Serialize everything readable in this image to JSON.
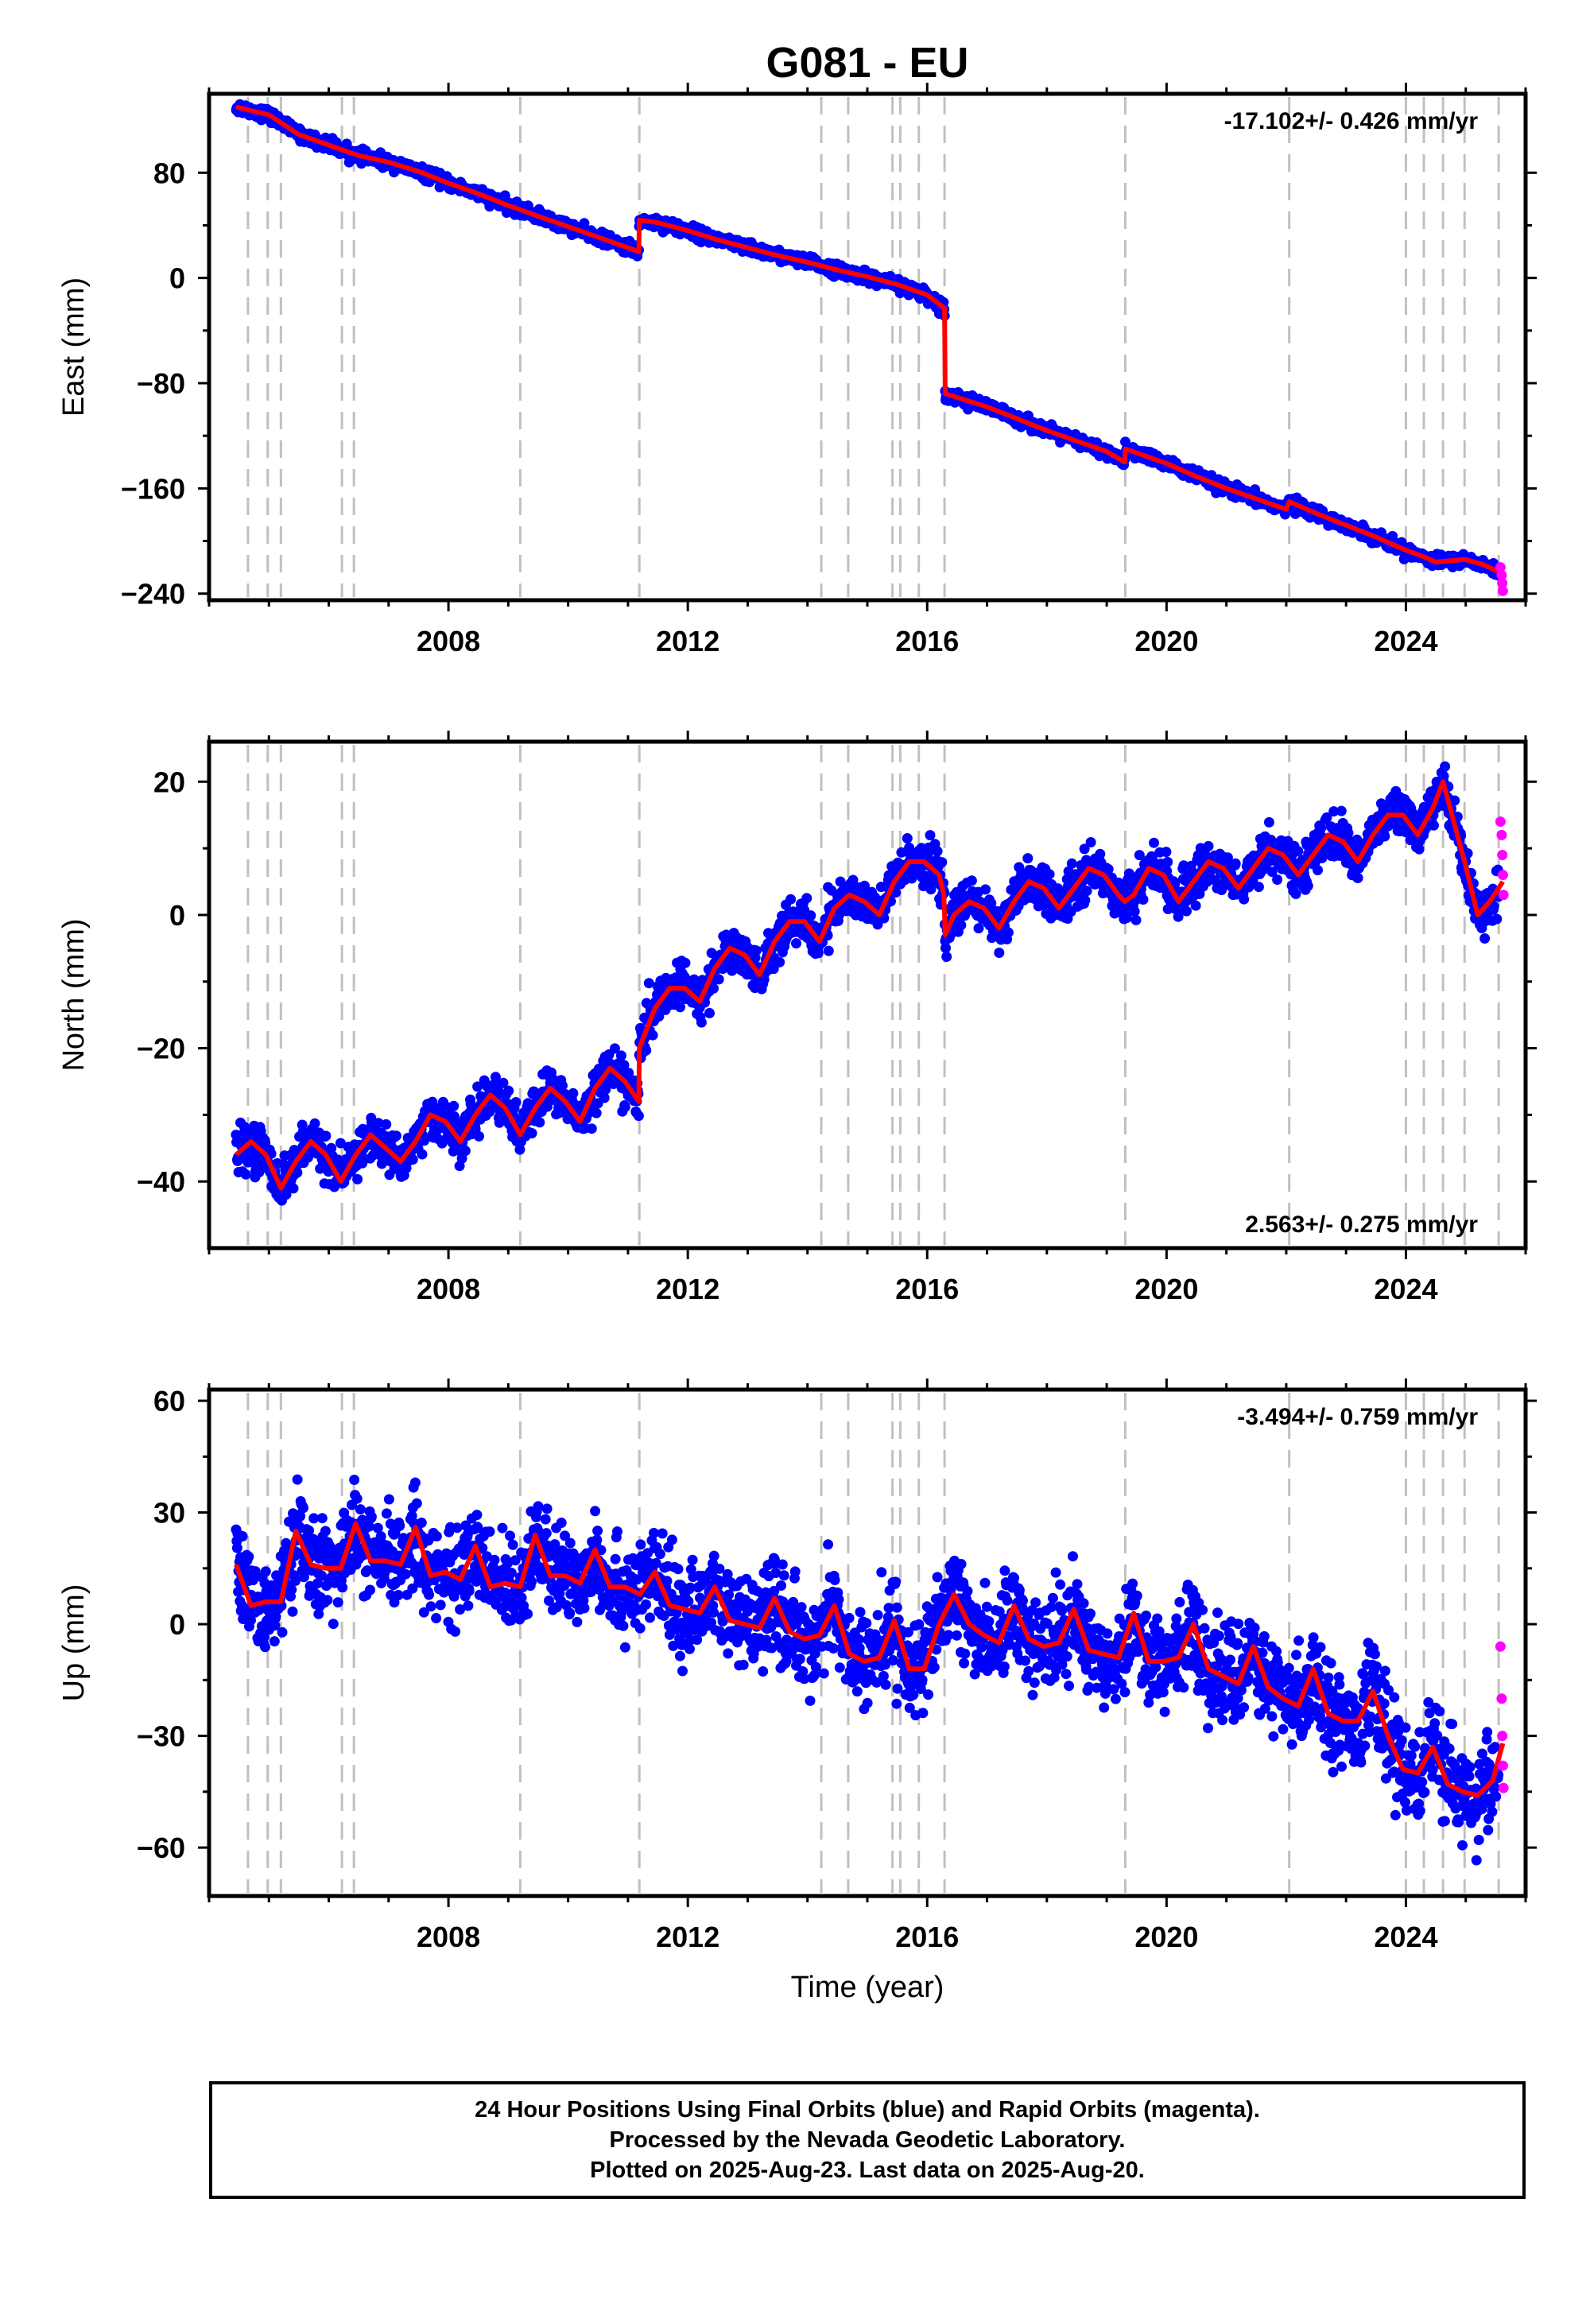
{
  "title": "G081 - EU",
  "xlabel": "Time (year)",
  "x_ticks": [
    "2008",
    "2012",
    "2016",
    "2020",
    "2024"
  ],
  "colors": {
    "final": "#0000ff",
    "rapid": "#ff00ff",
    "model": "#ff0000",
    "steps": "#c0c0c0"
  },
  "footer": {
    "line1": "24 Hour Positions Using Final Orbits (blue) and Rapid Orbits (magenta).",
    "line2": "Processed by the Nevada Geodetic Laboratory.",
    "line3": "Plotted on 2025-Aug-23. Last data on 2025-Aug-20."
  },
  "chart_data": [
    {
      "type": "scatter",
      "ylabel": "East (mm)",
      "velocity": "-17.102+/- 0.426 mm/yr",
      "velocity_position": "top-right",
      "xlim": [
        2004.0,
        2026.0
      ],
      "ylim": [
        -245,
        140
      ],
      "y_ticks": [
        80,
        0,
        -80,
        -160,
        -240
      ],
      "step_epochs": [
        2004.65,
        2004.98,
        2005.2,
        2006.22,
        2006.42,
        2009.2,
        2011.19,
        2014.23,
        2014.68,
        2015.42,
        2015.55,
        2015.86,
        2016.29,
        2019.31,
        2022.05,
        2024.0,
        2024.3,
        2024.62,
        2024.98,
        2025.55
      ],
      "model_line": {
        "x": [
          2004.45,
          2005.0,
          2005.5,
          2006.0,
          2006.5,
          2007.0,
          2007.5,
          2008.0,
          2008.5,
          2009.0,
          2009.5,
          2010.0,
          2010.5,
          2011.18,
          2011.19,
          2011.5,
          2012.0,
          2012.5,
          2013.0,
          2013.5,
          2014.0,
          2014.5,
          2015.0,
          2015.5,
          2016.0,
          2016.29,
          2016.3,
          2017.0,
          2017.5,
          2018.0,
          2018.5,
          2019.0,
          2019.3,
          2019.31,
          2019.5,
          2020.0,
          2020.5,
          2021.0,
          2021.5,
          2022.0,
          2022.05,
          2022.5,
          2023.0,
          2023.5,
          2024.0,
          2024.3,
          2024.5,
          2024.98,
          2025.3,
          2025.62
        ],
        "y": [
          130,
          124,
          109,
          101,
          93,
          88,
          81,
          72,
          64,
          55,
          47,
          39,
          31,
          20,
          44,
          42,
          36,
          29,
          23,
          17,
          12,
          6,
          1,
          -5,
          -13,
          -23,
          -88,
          -98,
          -107,
          -116,
          -124,
          -132,
          -140,
          -130,
          -133,
          -141,
          -151,
          -160,
          -168,
          -176,
          -170,
          -179,
          -188,
          -197,
          -207,
          -212,
          -216,
          -214,
          -218,
          -225
        ]
      },
      "rapid_points": {
        "x": [
          2025.58,
          2025.6,
          2025.61,
          2025.62
        ],
        "y": [
          -220,
          -226,
          -232,
          -238
        ]
      }
    },
    {
      "type": "scatter",
      "ylabel": "North (mm)",
      "velocity": "2.563+/- 0.275 mm/yr",
      "velocity_position": "bottom-right",
      "xlim": [
        2004.0,
        2026.0
      ],
      "ylim": [
        -50,
        26
      ],
      "y_ticks": [
        20,
        0,
        -20,
        -40
      ],
      "step_epochs": [
        2004.65,
        2004.98,
        2005.2,
        2006.22,
        2006.42,
        2009.2,
        2011.19,
        2014.23,
        2014.68,
        2015.42,
        2015.55,
        2015.86,
        2016.29,
        2019.31,
        2022.05,
        2024.0,
        2024.3,
        2024.62,
        2024.98,
        2025.55
      ],
      "model_line": {
        "x": [
          2004.45,
          2004.7,
          2004.95,
          2005.2,
          2005.45,
          2005.7,
          2005.95,
          2006.2,
          2006.45,
          2006.7,
          2006.95,
          2007.2,
          2007.45,
          2007.7,
          2007.95,
          2008.2,
          2008.45,
          2008.7,
          2008.95,
          2009.2,
          2009.45,
          2009.7,
          2009.95,
          2010.2,
          2010.45,
          2010.7,
          2010.95,
          2011.18,
          2011.19,
          2011.45,
          2011.7,
          2011.95,
          2012.2,
          2012.45,
          2012.7,
          2012.95,
          2013.2,
          2013.45,
          2013.7,
          2013.95,
          2014.2,
          2014.45,
          2014.7,
          2014.95,
          2015.2,
          2015.45,
          2015.7,
          2015.95,
          2016.2,
          2016.28,
          2016.3,
          2016.45,
          2016.7,
          2016.95,
          2017.2,
          2017.45,
          2017.7,
          2017.95,
          2018.2,
          2018.45,
          2018.7,
          2018.95,
          2019.2,
          2019.3,
          2019.45,
          2019.7,
          2019.95,
          2020.2,
          2020.45,
          2020.7,
          2020.95,
          2021.2,
          2021.45,
          2021.7,
          2021.95,
          2022.2,
          2022.45,
          2022.7,
          2022.95,
          2023.2,
          2023.45,
          2023.7,
          2023.95,
          2024.2,
          2024.45,
          2024.62,
          2024.8,
          2024.98,
          2025.2,
          2025.4,
          2025.62
        ],
        "y": [
          -36,
          -34,
          -36,
          -41,
          -37,
          -34,
          -36,
          -40,
          -36,
          -33,
          -35,
          -37,
          -34,
          -30,
          -31,
          -34,
          -30,
          -27,
          -29,
          -33,
          -29,
          -26,
          -28,
          -31,
          -26,
          -23,
          -25,
          -28,
          -20,
          -14,
          -11,
          -11,
          -13,
          -8,
          -5,
          -6,
          -9,
          -4,
          -1,
          -1,
          -4,
          1,
          3,
          2,
          0,
          5,
          8,
          8,
          6,
          3,
          -3,
          0,
          2,
          1,
          -2,
          2,
          5,
          4,
          1,
          4,
          7,
          6,
          3,
          2,
          3,
          7,
          6,
          2,
          5,
          8,
          7,
          4,
          7,
          10,
          9,
          6,
          9,
          12,
          11,
          8,
          12,
          15,
          15,
          12,
          16,
          20,
          14,
          8,
          0,
          2,
          5
        ]
      },
      "rapid_points": {
        "x": [
          2025.58,
          2025.6,
          2025.61,
          2025.62,
          2025.63
        ],
        "y": [
          14,
          12,
          9,
          6,
          3
        ]
      }
    },
    {
      "type": "scatter",
      "ylabel": "Up (mm)",
      "velocity": "-3.494+/- 0.759 mm/yr",
      "velocity_position": "top-right",
      "xlim": [
        2004.0,
        2026.0
      ],
      "ylim": [
        -73,
        63
      ],
      "y_ticks": [
        60,
        30,
        0,
        -30,
        -60
      ],
      "step_epochs": [
        2004.65,
        2004.98,
        2005.2,
        2006.22,
        2006.42,
        2009.2,
        2011.19,
        2014.23,
        2014.68,
        2015.42,
        2015.55,
        2015.86,
        2016.29,
        2019.31,
        2022.05,
        2024.0,
        2024.3,
        2024.62,
        2024.98,
        2025.55
      ],
      "model_line": {
        "x": [
          2004.45,
          2004.7,
          2004.95,
          2005.2,
          2005.45,
          2005.7,
          2005.95,
          2006.2,
          2006.45,
          2006.7,
          2006.95,
          2007.2,
          2007.45,
          2007.7,
          2007.95,
          2008.2,
          2008.45,
          2008.7,
          2008.95,
          2009.2,
          2009.45,
          2009.7,
          2009.95,
          2010.2,
          2010.45,
          2010.7,
          2010.95,
          2011.2,
          2011.45,
          2011.7,
          2011.95,
          2012.2,
          2012.45,
          2012.7,
          2012.95,
          2013.2,
          2013.45,
          2013.7,
          2013.95,
          2014.2,
          2014.45,
          2014.7,
          2014.95,
          2015.2,
          2015.45,
          2015.7,
          2015.95,
          2016.2,
          2016.45,
          2016.7,
          2016.95,
          2017.2,
          2017.45,
          2017.7,
          2017.95,
          2018.2,
          2018.45,
          2018.7,
          2018.95,
          2019.2,
          2019.45,
          2019.7,
          2019.95,
          2020.2,
          2020.45,
          2020.7,
          2020.95,
          2021.2,
          2021.45,
          2021.7,
          2021.95,
          2022.2,
          2022.45,
          2022.7,
          2022.95,
          2023.2,
          2023.45,
          2023.7,
          2023.95,
          2024.2,
          2024.45,
          2024.7,
          2024.95,
          2025.2,
          2025.45,
          2025.62
        ],
        "y": [
          16,
          5,
          6,
          6,
          25,
          16,
          15,
          15,
          27,
          17,
          17,
          16,
          26,
          13,
          14,
          12,
          21,
          10,
          11,
          10,
          24,
          13,
          13,
          11,
          20,
          10,
          10,
          8,
          14,
          5,
          4,
          3,
          10,
          1,
          0,
          -1,
          7,
          -2,
          -4,
          -3,
          5,
          -8,
          -10,
          -9,
          1,
          -12,
          -12,
          0,
          8,
          0,
          -3,
          -5,
          5,
          -4,
          -6,
          -5,
          4,
          -7,
          -8,
          -9,
          3,
          -10,
          -10,
          -9,
          0,
          -12,
          -14,
          -16,
          -6,
          -17,
          -20,
          -22,
          -12,
          -24,
          -26,
          -26,
          -18,
          -30,
          -39,
          -40,
          -33,
          -43,
          -45,
          -46,
          -42,
          -32
        ]
      },
      "rapid_points": {
        "x": [
          2025.58,
          2025.6,
          2025.61,
          2025.62,
          2025.63
        ],
        "y": [
          -6,
          -20,
          -30,
          -38,
          -44
        ]
      }
    }
  ]
}
